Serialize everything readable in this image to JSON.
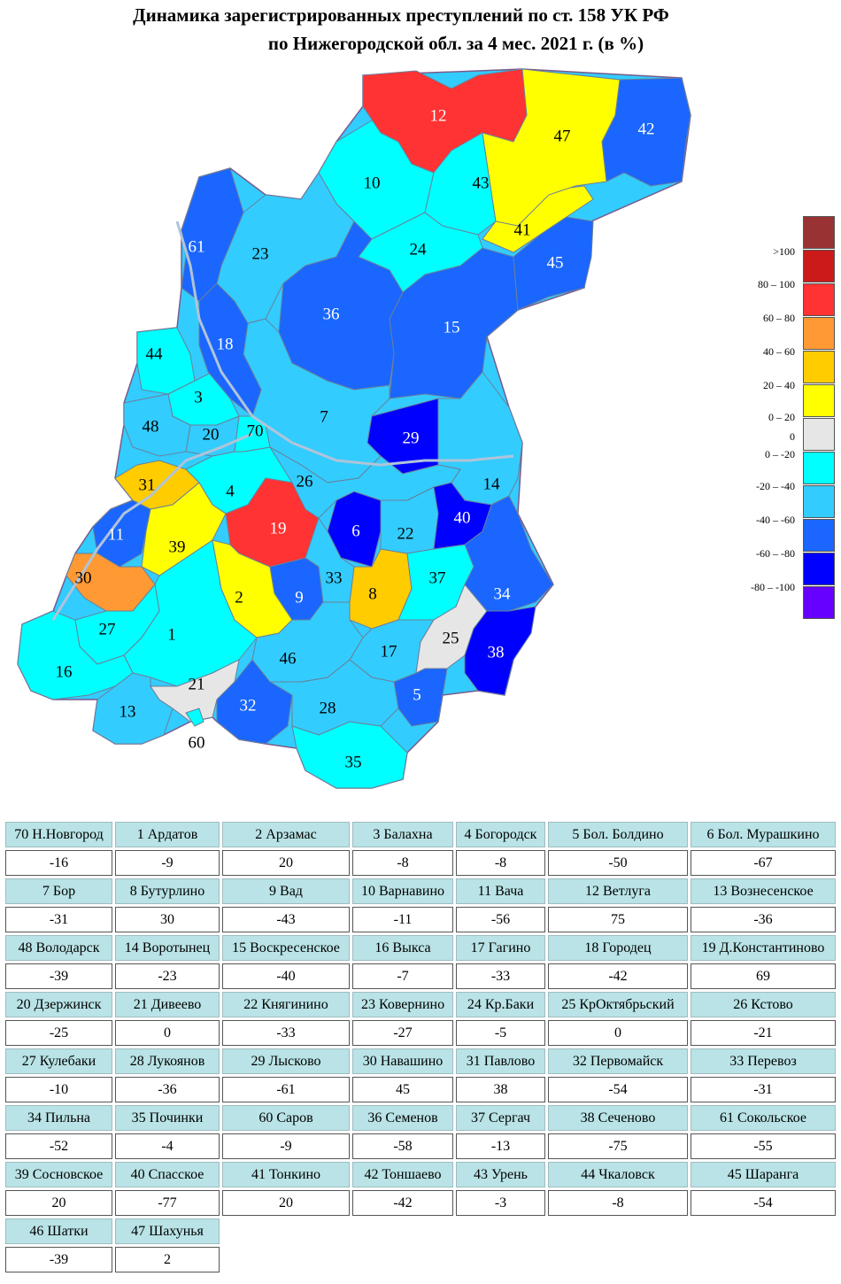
{
  "title_line1": "Динамика зарегистрированных преступлений по ст. 158 УК РФ",
  "title_line2": "по Нижегородской обл. за 4 мес. 2021 г. (в %)",
  "legend": [
    {
      "label": "",
      "color": "#993333"
    },
    {
      "label": ">100",
      "color": "#cc1a1a"
    },
    {
      "label": "80 – 100",
      "color": "#ff3333"
    },
    {
      "label": "60 – 80",
      "color": "#ff9933"
    },
    {
      "label": "40 – 60",
      "color": "#ffcc00"
    },
    {
      "label": "20 – 40",
      "color": "#ffff00"
    },
    {
      "label": "0 – 20",
      "color": "#e6e6e6"
    },
    {
      "label": "0",
      "color": ""
    },
    {
      "label": "0 – -20",
      "color": "#00ffff"
    },
    {
      "label": "-20 – -40",
      "color": "#33ccff"
    },
    {
      "label": "-40 – -60",
      "color": "#1a66ff"
    },
    {
      "label": "-60 – -80",
      "color": "#0000ff"
    },
    {
      "label": "-80 – -100",
      "color": "#6600ff"
    }
  ],
  "districts": [
    {
      "num": "70",
      "name": "Н.Новгород",
      "value": -16
    },
    {
      "num": "1",
      "name": "Ардатов",
      "value": -9
    },
    {
      "num": "2",
      "name": "Арзамас",
      "value": 20
    },
    {
      "num": "3",
      "name": "Балахна",
      "value": -8
    },
    {
      "num": "4",
      "name": "Богородск",
      "value": -8
    },
    {
      "num": "5",
      "name": "Бол. Болдино",
      "value": -50
    },
    {
      "num": "6",
      "name": "Бол. Мурашкино",
      "value": -67
    },
    {
      "num": "7",
      "name": "Бор",
      "value": -31
    },
    {
      "num": "8",
      "name": "Бутурлино",
      "value": 30
    },
    {
      "num": "9",
      "name": "Вад",
      "value": -43
    },
    {
      "num": "10",
      "name": "Варнавино",
      "value": -11
    },
    {
      "num": "11",
      "name": "Вача",
      "value": -56
    },
    {
      "num": "12",
      "name": "Ветлуга",
      "value": 75
    },
    {
      "num": "13",
      "name": "Вознесенское",
      "value": -36
    },
    {
      "num": "48",
      "name": "Володарск",
      "value": -39
    },
    {
      "num": "14",
      "name": "Воротынец",
      "value": -23
    },
    {
      "num": "15",
      "name": "Воскресенское",
      "value": -40
    },
    {
      "num": "16",
      "name": "Выкса",
      "value": -7
    },
    {
      "num": "17",
      "name": "Гагино",
      "value": -33
    },
    {
      "num": "18",
      "name": "Городец",
      "value": -42
    },
    {
      "num": "19",
      "name": "Д.Константиново",
      "value": 69
    },
    {
      "num": "20",
      "name": "Дзержинск",
      "value": -25
    },
    {
      "num": "21",
      "name": "Дивеево",
      "value": 0
    },
    {
      "num": "22",
      "name": "Княгинино",
      "value": -33
    },
    {
      "num": "23",
      "name": "Ковернино",
      "value": -27
    },
    {
      "num": "24",
      "name": "Кр.Баки",
      "value": -5
    },
    {
      "num": "25",
      "name": "КрОктябрьский",
      "value": 0
    },
    {
      "num": "26",
      "name": "Кстово",
      "value": -21
    },
    {
      "num": "27",
      "name": "Кулебаки",
      "value": -10
    },
    {
      "num": "28",
      "name": "Лукоянов",
      "value": -36
    },
    {
      "num": "29",
      "name": "Лысково",
      "value": -61
    },
    {
      "num": "30",
      "name": "Навашино",
      "value": 45
    },
    {
      "num": "31",
      "name": "Павлово",
      "value": 38
    },
    {
      "num": "32",
      "name": "Первомайск",
      "value": -54
    },
    {
      "num": "33",
      "name": "Перевоз",
      "value": -31
    },
    {
      "num": "34",
      "name": "Пильна",
      "value": -52
    },
    {
      "num": "35",
      "name": "Починки",
      "value": -4
    },
    {
      "num": "60",
      "name": "Саров",
      "value": -9
    },
    {
      "num": "36",
      "name": "Семенов",
      "value": -58
    },
    {
      "num": "37",
      "name": "Сергач",
      "value": -13
    },
    {
      "num": "38",
      "name": "Сеченово",
      "value": -75
    },
    {
      "num": "61",
      "name": "Сокольское",
      "value": -55
    },
    {
      "num": "39",
      "name": "Сосновское",
      "value": 20
    },
    {
      "num": "40",
      "name": "Спасское",
      "value": -77
    },
    {
      "num": "41",
      "name": "Тонкино",
      "value": 20
    },
    {
      "num": "42",
      "name": "Тоншаево",
      "value": -42
    },
    {
      "num": "43",
      "name": "Урень",
      "value": -3
    },
    {
      "num": "44",
      "name": "Чкаловск",
      "value": -8
    },
    {
      "num": "45",
      "name": "Шаранга",
      "value": -54
    },
    {
      "num": "46",
      "name": "Шатки",
      "value": -39
    },
    {
      "num": "47",
      "name": "Шахунья",
      "value": 2
    }
  ]
}
